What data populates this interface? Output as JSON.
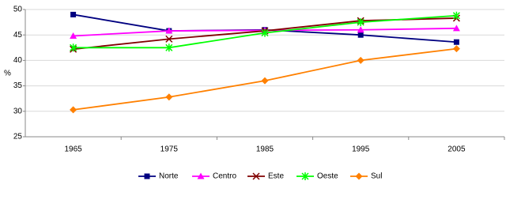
{
  "chart_data": {
    "type": "line",
    "y_label": "%",
    "categories": [
      "1965",
      "1975",
      "1985",
      "1995",
      "2005"
    ],
    "ylim": [
      25,
      50
    ],
    "yticks": [
      25,
      30,
      35,
      40,
      45,
      50
    ],
    "grid": true,
    "legend": "bottom",
    "series": [
      {
        "name": "Norte",
        "color": "#000080",
        "marker": "square",
        "values": [
          49,
          45.8,
          46,
          45,
          43.6
        ]
      },
      {
        "name": "Centro",
        "color": "#ff00ff",
        "marker": "triangle",
        "values": [
          44.8,
          45.8,
          45.9,
          46,
          46.3
        ]
      },
      {
        "name": "Este",
        "color": "#800000",
        "marker": "x",
        "values": [
          42.2,
          44.2,
          45.8,
          47.8,
          48.3
        ]
      },
      {
        "name": "Oeste",
        "color": "#00ff00",
        "marker": "star",
        "values": [
          42.5,
          42.5,
          45.4,
          47.5,
          48.8
        ]
      },
      {
        "name": "Sul",
        "color": "#ff8000",
        "marker": "diamond",
        "values": [
          30.3,
          32.8,
          36,
          40,
          42.3
        ]
      }
    ]
  }
}
